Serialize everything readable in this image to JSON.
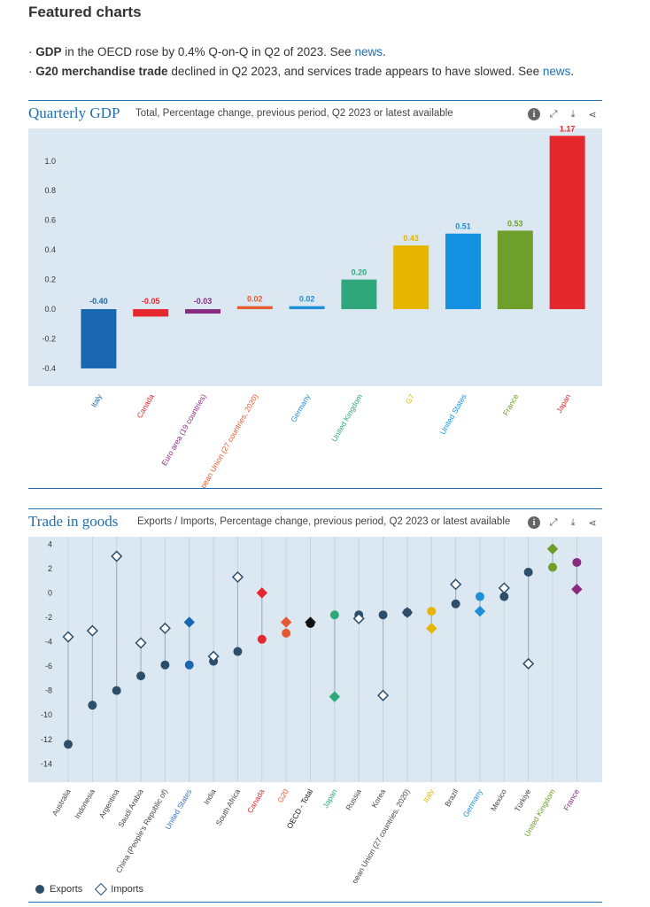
{
  "page": {
    "title": "Featured charts",
    "bullets": [
      {
        "pre": "· ",
        "strong": "GDP",
        "text": " in the OECD rose by 0.4% Q-on-Q in Q2 of 2023. See ",
        "link": "news",
        "post": "."
      },
      {
        "pre": "· ",
        "strong": "G20 merchandise trade",
        "text": " declined in Q2 2023, and services trade appears to have slowed. See ",
        "link": "news",
        "post": "."
      }
    ]
  },
  "icons": [
    "info-icon",
    "expand-icon",
    "download-icon",
    "share-icon"
  ],
  "chart_data": [
    {
      "type": "bar",
      "title": "Quarterly GDP",
      "subtitle": "Total, Percentage change, previous period, Q2 2023 or latest available",
      "categories": [
        "Italy",
        "Canada",
        "Euro area (19 countries)",
        "European Union (27 countries, 2020)",
        "Germany",
        "United Kingdom",
        "G7",
        "United States",
        "France",
        "Japan"
      ],
      "values": [
        -0.4,
        -0.05,
        -0.03,
        0.02,
        0.02,
        0.2,
        0.43,
        0.51,
        0.53,
        1.17
      ],
      "value_labels": [
        "-0.40",
        "-0.05",
        "-0.03",
        "0.02",
        "0.02",
        "0.20",
        "0.43",
        "0.51",
        "0.53",
        "1.17"
      ],
      "colors": [
        "#1a66b0",
        "#e5282e",
        "#8a2b82",
        "#e65a32",
        "#1f8fd8",
        "#2ea87a",
        "#e5b500",
        "#1491e0",
        "#6d9f2a",
        "#e5282e"
      ],
      "yticks": [
        -0.4,
        -0.2,
        0.0,
        0.2,
        0.4,
        0.6,
        0.8,
        1.0
      ],
      "ytick_labels": [
        "-0.4",
        "-0.2",
        "0.0",
        "0.2",
        "0.4",
        "0.6",
        "0.8",
        "1.0"
      ],
      "ylim": [
        -0.52,
        1.22
      ],
      "grid": false,
      "background": "#dce8f1"
    },
    {
      "type": "scatter",
      "title": "Trade in goods",
      "subtitle": "Exports / Imports, Percentage change, previous period, Q2 2023 or latest available",
      "categories": [
        "Australia",
        "Indonesia",
        "Argentina",
        "Saudi Arabia",
        "China (People's Republic of)",
        "United States",
        "India",
        "South Africa",
        "Canada",
        "G20",
        "OECD - Total",
        "Japan",
        "Russia",
        "Korea",
        "European Union (27 countries, 2020)",
        "Italy",
        "Brazil",
        "Germany",
        "Mexico",
        "Türkiye",
        "United Kingdom",
        "France"
      ],
      "label_colors": [
        "#444444",
        "#444444",
        "#444444",
        "#444444",
        "#444444",
        "#3a78c2",
        "#444444",
        "#444444",
        "#e5282e",
        "#e65a32",
        "#111111",
        "#2ea87a",
        "#444444",
        "#444444",
        "#444444",
        "#e5b500",
        "#444444",
        "#1f8fd8",
        "#444444",
        "#444444",
        "#6d9f2a",
        "#8a2b82"
      ],
      "series": [
        {
          "name": "Exports",
          "values": [
            -12.4,
            -9.2,
            -8.0,
            -6.8,
            -5.9,
            -5.9,
            -5.6,
            -4.8,
            -3.8,
            -3.3,
            -2.5,
            -1.8,
            -1.8,
            -1.8,
            -1.6,
            -1.5,
            -0.9,
            -0.3,
            -0.3,
            1.7,
            2.1,
            2.5
          ],
          "colors": [
            "#2d4e6a",
            "#2d4e6a",
            "#2d4e6a",
            "#2d4e6a",
            "#2d4e6a",
            "#1a66b0",
            "#2d4e6a",
            "#2d4e6a",
            "#e5282e",
            "#e65a32",
            "#111111",
            "#2ea87a",
            "#2d4e6a",
            "#2d4e6a",
            "#2d4e6a",
            "#e5b500",
            "#2d4e6a",
            "#1f8fd8",
            "#2d4e6a",
            "#2d4e6a",
            "#6d9f2a",
            "#8a2b82"
          ]
        },
        {
          "name": "Imports",
          "values": [
            -3.6,
            -3.1,
            3.0,
            -4.1,
            -2.9,
            -2.4,
            -5.2,
            1.3,
            0.0,
            -2.4,
            -2.4,
            -8.5,
            -2.1,
            -8.4,
            -1.6,
            -2.9,
            0.7,
            -1.5,
            0.4,
            -5.8,
            3.6,
            0.3
          ],
          "hollow": [
            true,
            true,
            true,
            true,
            true,
            false,
            true,
            true,
            false,
            false,
            false,
            false,
            true,
            true,
            false,
            false,
            true,
            false,
            true,
            true,
            false,
            false
          ],
          "colors": [
            "#2d4e6a",
            "#2d4e6a",
            "#2d4e6a",
            "#2d4e6a",
            "#2d4e6a",
            "#1a66b0",
            "#2d4e6a",
            "#2d4e6a",
            "#e5282e",
            "#e65a32",
            "#111111",
            "#2ea87a",
            "#2d4e6a",
            "#2d4e6a",
            "#2d4e6a",
            "#e5b500",
            "#2d4e6a",
            "#1f8fd8",
            "#2d4e6a",
            "#2d4e6a",
            "#6d9f2a",
            "#8a2b82"
          ]
        }
      ],
      "yticks": [
        -14,
        -12,
        -10,
        -8,
        -6,
        -4,
        -2,
        0,
        2,
        4
      ],
      "ytick_labels": [
        "-14",
        "-12",
        "-10",
        "-8",
        "-6",
        "-4",
        "-2",
        "0",
        "2",
        "4"
      ],
      "ylim": [
        -15.5,
        4.6
      ],
      "legend_position": "bottom-left",
      "legend": [
        {
          "label": "Exports",
          "marker": "dot"
        },
        {
          "label": "Imports",
          "marker": "diamond"
        }
      ],
      "grid": false,
      "background": "#dce8f1"
    }
  ]
}
